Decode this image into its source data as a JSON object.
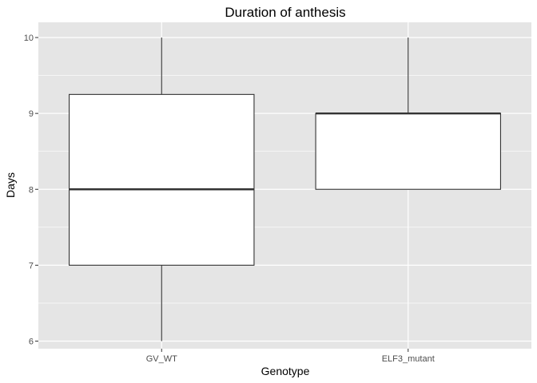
{
  "chart_data": {
    "type": "boxplot",
    "title": "Duration of anthesis",
    "xlabel": "Genotype",
    "ylabel": "Days",
    "categories": [
      "GV_WT",
      "ELF3_mutant"
    ],
    "boxes": [
      {
        "category": "GV_WT",
        "min": 6,
        "q1": 7,
        "median": 8,
        "q3": 9.25,
        "max": 10
      },
      {
        "category": "ELF3_mutant",
        "min": 8,
        "q1": 8,
        "median": 9,
        "q3": 9,
        "max": 10
      }
    ],
    "yticks": [
      6,
      7,
      8,
      9,
      10
    ],
    "ylim": [
      5.9,
      10.2
    ],
    "grid": true,
    "colors": {
      "panel": "#e5e5e5",
      "grid": "#ffffff",
      "box_fill": "#ffffff",
      "box_stroke": "#333333"
    }
  }
}
